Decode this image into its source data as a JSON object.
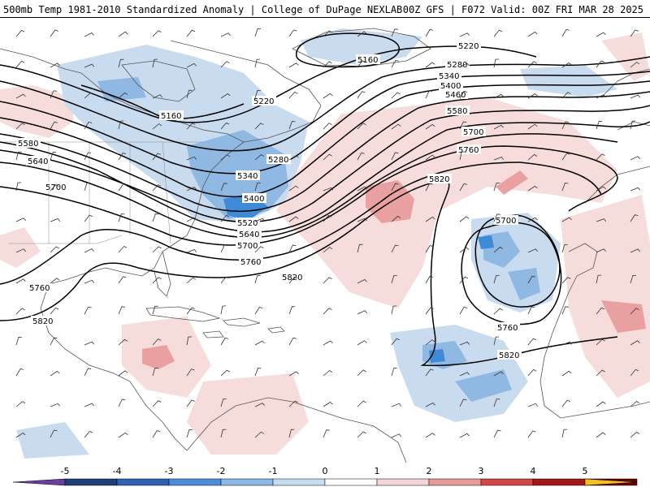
{
  "header": {
    "title_left": "500mb Temp 1981-2010 Standardized Anomaly | College of DuPage NEXLAB",
    "title_right": "00Z GFS | F072 Valid: 00Z FRI MAR 28 2025"
  },
  "contour_labels": [
    "5160",
    "5220",
    "5280",
    "5340",
    "5400",
    "5460",
    "5520",
    "5580",
    "5640",
    "5700",
    "5760",
    "5820"
  ],
  "colorbar": {
    "ticks": [
      "-5",
      "-4",
      "-3",
      "-2",
      "-1",
      "0",
      "1",
      "2",
      "3",
      "4",
      "5"
    ],
    "colors": [
      "#6a3fa0",
      "#1f3f7a",
      "#2f63b0",
      "#4a8fd6",
      "#8ab8e8",
      "#c6dcf2",
      "#ffffff",
      "#f6d4d4",
      "#e89a9a",
      "#d04848",
      "#a01818",
      "#6a0000",
      "#f4c020"
    ]
  },
  "colors": {
    "cold_light": "#c9dcef",
    "cold_mid": "#8fb8e3",
    "cold_strong": "#3f8ad6",
    "warm_light": "#f7dcdc",
    "warm_mid": "#e8a0a0",
    "contour": "#000000",
    "coast": "#555555"
  }
}
